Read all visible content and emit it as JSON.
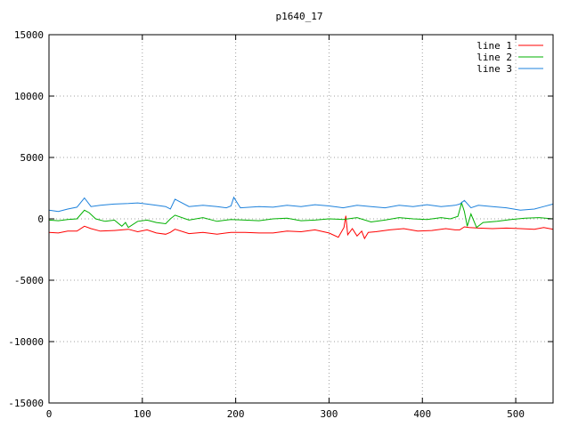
{
  "chart_data": {
    "type": "line",
    "title": "p1640_17",
    "xlabel": "",
    "ylabel": "",
    "xlim": [
      0,
      540
    ],
    "ylim": [
      -15000,
      15000
    ],
    "xticks": [
      0,
      100,
      200,
      300,
      400,
      500
    ],
    "yticks": [
      -15000,
      -10000,
      -5000,
      0,
      5000,
      10000,
      15000
    ],
    "xtick_labels": [
      "0",
      "100",
      "200",
      "300",
      "400",
      "500"
    ],
    "ytick_labels": [
      "-15000",
      "-10000",
      "-5000",
      "0",
      "5000",
      "10000",
      "15000"
    ],
    "grid": true,
    "legend_position": "top-right",
    "series": [
      {
        "name": "line 1",
        "color": "#ff0000",
        "x": [
          0,
          10,
          20,
          30,
          38,
          45,
          55,
          70,
          85,
          95,
          105,
          115,
          125,
          130,
          135,
          150,
          165,
          180,
          195,
          210,
          225,
          240,
          255,
          270,
          285,
          300,
          310,
          316,
          318,
          320,
          325,
          330,
          335,
          338,
          342,
          350,
          365,
          380,
          395,
          410,
          425,
          435,
          440,
          445,
          450,
          460,
          475,
          490,
          505,
          520,
          530,
          540
        ],
        "y": [
          -1100,
          -1150,
          -1000,
          -1000,
          -600,
          -800,
          -1000,
          -950,
          -850,
          -1050,
          -900,
          -1150,
          -1250,
          -1100,
          -850,
          -1200,
          -1100,
          -1250,
          -1100,
          -1100,
          -1150,
          -1150,
          -1000,
          -1050,
          -900,
          -1150,
          -1500,
          -700,
          250,
          -1300,
          -800,
          -1400,
          -1000,
          -1600,
          -1100,
          -1050,
          -900,
          -800,
          -1000,
          -950,
          -800,
          -900,
          -900,
          -650,
          -700,
          -750,
          -800,
          -750,
          -800,
          -850,
          -700,
          -850
        ]
      },
      {
        "name": "line 2",
        "color": "#00b000",
        "x": [
          0,
          10,
          20,
          30,
          38,
          43,
          50,
          60,
          70,
          78,
          82,
          85,
          95,
          105,
          115,
          125,
          130,
          135,
          150,
          165,
          180,
          195,
          210,
          225,
          240,
          255,
          270,
          285,
          300,
          315,
          330,
          345,
          360,
          375,
          390,
          405,
          420,
          430,
          438,
          442,
          445,
          448,
          452,
          458,
          465,
          480,
          495,
          510,
          525,
          540
        ],
        "y": [
          -100,
          -150,
          -50,
          0,
          700,
          500,
          0,
          -200,
          -100,
          -600,
          -300,
          -700,
          -200,
          -100,
          -300,
          -400,
          0,
          300,
          -100,
          100,
          -200,
          -50,
          -100,
          -150,
          0,
          50,
          -150,
          -100,
          0,
          -50,
          100,
          -250,
          -100,
          100,
          0,
          -50,
          100,
          0,
          200,
          1300,
          600,
          -600,
          400,
          -700,
          -300,
          -200,
          -50,
          50,
          100,
          0
        ]
      },
      {
        "name": "line 3",
        "color": "#1e82dc",
        "x": [
          0,
          10,
          20,
          30,
          38,
          45,
          55,
          70,
          85,
          95,
          105,
          115,
          125,
          130,
          135,
          150,
          165,
          180,
          190,
          195,
          198,
          205,
          225,
          240,
          255,
          270,
          285,
          300,
          315,
          330,
          345,
          360,
          375,
          390,
          405,
          420,
          435,
          440,
          445,
          452,
          460,
          475,
          490,
          505,
          520,
          530,
          540
        ],
        "y": [
          700,
          600,
          800,
          950,
          1700,
          1000,
          1100,
          1200,
          1250,
          1300,
          1200,
          1100,
          1000,
          800,
          1600,
          1000,
          1100,
          1000,
          900,
          1050,
          1750,
          900,
          1000,
          950,
          1100,
          1000,
          1150,
          1050,
          900,
          1100,
          1000,
          900,
          1100,
          1000,
          1150,
          1000,
          1100,
          1200,
          1500,
          900,
          1100,
          1000,
          900,
          700,
          800,
          1000,
          1200
        ]
      }
    ]
  }
}
